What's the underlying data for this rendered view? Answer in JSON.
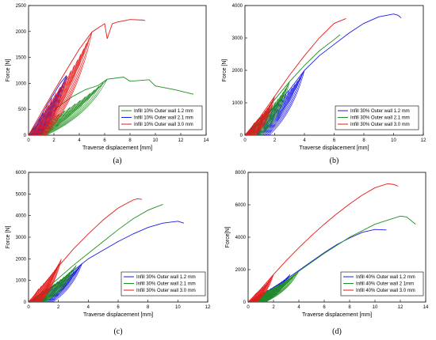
{
  "colors": {
    "blue": "#1a1ae6",
    "green": "#1f8f1f",
    "red": "#e61a1a"
  },
  "chart_data": [
    {
      "panel_label": "(a)",
      "type": "line",
      "xlabel": "Traverse displacement [mm]",
      "ylabel": "Force [N]",
      "xlim": [
        0,
        14
      ],
      "ylim": [
        0,
        2500
      ],
      "xticks": [
        0,
        2,
        4,
        6,
        8,
        10,
        12,
        14
      ],
      "yticks": [
        0,
        500,
        1000,
        1500,
        2000,
        2500
      ],
      "legend_position": "bottom-right",
      "series": [
        {
          "name": "Infill 10% Outer wall 1.2 mm",
          "color": "green",
          "points": [
            [
              0,
              0
            ],
            [
              0.5,
              150
            ],
            [
              1.5,
              380
            ],
            [
              2.5,
              580
            ],
            [
              3.5,
              750
            ],
            [
              4.5,
              880
            ],
            [
              5.5,
              960
            ],
            [
              6.2,
              1080
            ],
            [
              7.5,
              1120
            ],
            [
              8,
              1040
            ],
            [
              9.5,
              1070
            ],
            [
              10,
              950
            ],
            [
              11.5,
              880
            ],
            [
              13,
              790
            ]
          ],
          "cycles": {
            "count": 12,
            "end_x": 6.2,
            "end_y": 1080,
            "shift": 0.12
          }
        },
        {
          "name": "Infill 10% Outer wall 2.1 mm",
          "color": "blue",
          "points": [
            [
              0,
              0
            ],
            [
              0.5,
              180
            ],
            [
              1,
              380
            ],
            [
              1.5,
              600
            ],
            [
              2,
              800
            ],
            [
              2.5,
              1000
            ],
            [
              3,
              1150
            ]
          ],
          "cycles": {
            "count": 12,
            "end_x": 3,
            "end_y": 1150,
            "shift": 0.08
          }
        },
        {
          "name": "Infill 10% Outer wall 3.0 mm",
          "color": "red",
          "points": [
            [
              0,
              0
            ],
            [
              1,
              430
            ],
            [
              2,
              850
            ],
            [
              3,
              1260
            ],
            [
              4,
              1660
            ],
            [
              5,
              1990
            ],
            [
              6,
              2150
            ],
            [
              6.2,
              1860
            ],
            [
              6.6,
              2150
            ],
            [
              7,
              2180
            ],
            [
              8,
              2230
            ],
            [
              9,
              2220
            ],
            [
              9.2,
              2210
            ]
          ],
          "cycles": {
            "count": 14,
            "end_x": 5,
            "end_y": 1990,
            "shift": 0.1
          }
        }
      ]
    },
    {
      "panel_label": "(b)",
      "type": "line",
      "xlabel": "Traverse displacement [mm]",
      "ylabel": "Force [N]",
      "xlim": [
        0,
        12
      ],
      "ylim": [
        0,
        4000
      ],
      "xticks": [
        0,
        2,
        4,
        6,
        8,
        10,
        12
      ],
      "yticks": [
        0,
        1000,
        2000,
        3000,
        4000
      ],
      "legend_position": "bottom-right",
      "series": [
        {
          "name": "Infill 30% Outer wall 1.2 mm",
          "color": "blue",
          "points": [
            [
              0,
              0
            ],
            [
              1,
              400
            ],
            [
              2,
              900
            ],
            [
              3,
              1400
            ],
            [
              4,
              2000
            ],
            [
              5,
              2450
            ],
            [
              6,
              2800
            ],
            [
              7,
              3150
            ],
            [
              8,
              3450
            ],
            [
              9,
              3650
            ],
            [
              10,
              3740
            ],
            [
              10.3,
              3700
            ],
            [
              10.5,
              3620
            ]
          ],
          "cycles": {
            "count": 14,
            "end_x": 4,
            "end_y": 2000,
            "shift": 0.12
          }
        },
        {
          "name": "Infill 30% Outer wall 2.1 mm",
          "color": "green",
          "points": [
            [
              0,
              0
            ],
            [
              1,
              500
            ],
            [
              2,
              1100
            ],
            [
              3,
              1650
            ],
            [
              4,
              2150
            ],
            [
              5,
              2600
            ],
            [
              6,
              2950
            ],
            [
              6.4,
              3100
            ]
          ],
          "cycles": {
            "count": 12,
            "end_x": 3,
            "end_y": 1650,
            "shift": 0.1
          }
        },
        {
          "name": "Infill 30% Outer wall 3.0 mm",
          "color": "red",
          "points": [
            [
              0,
              0
            ],
            [
              1,
              550
            ],
            [
              2,
              1200
            ],
            [
              3,
              1850
            ],
            [
              4,
              2450
            ],
            [
              5,
              3000
            ],
            [
              6,
              3450
            ],
            [
              6.8,
              3600
            ]
          ],
          "cycles": {
            "count": 10,
            "end_x": 2,
            "end_y": 1200,
            "shift": 0.08
          }
        }
      ]
    },
    {
      "panel_label": "(c)",
      "type": "line",
      "xlabel": "Traverse displacement [mm]",
      "ylabel": "Force [N]",
      "xlim": [
        0,
        12
      ],
      "ylim": [
        0,
        6000
      ],
      "xticks": [
        0,
        2,
        4,
        6,
        8,
        10,
        12
      ],
      "yticks": [
        0,
        1000,
        2000,
        3000,
        4000,
        5000,
        6000
      ],
      "legend_position": "bottom-right",
      "series": [
        {
          "name": "Infill 30% Outer wall 1.2 mm",
          "color": "blue",
          "points": [
            [
              0,
              0
            ],
            [
              1,
              400
            ],
            [
              2,
              900
            ],
            [
              3,
              1450
            ],
            [
              4,
              2000
            ],
            [
              5,
              2400
            ],
            [
              6,
              2800
            ],
            [
              7,
              3150
            ],
            [
              8,
              3450
            ],
            [
              9,
              3650
            ],
            [
              10,
              3740
            ],
            [
              10.4,
              3650
            ]
          ],
          "cycles": {
            "count": 14,
            "end_x": 3.6,
            "end_y": 1800,
            "shift": 0.12
          }
        },
        {
          "name": "Infill 30% Outer wall 2.1 mm",
          "color": "green",
          "points": [
            [
              0,
              0
            ],
            [
              1,
              500
            ],
            [
              2,
              1100
            ],
            [
              3,
              1700
            ],
            [
              4,
              2250
            ],
            [
              5,
              2800
            ],
            [
              6,
              3350
            ],
            [
              7,
              3850
            ],
            [
              8,
              4250
            ],
            [
              9,
              4520
            ]
          ],
          "cycles": {
            "count": 12,
            "end_x": 3.2,
            "end_y": 1700,
            "shift": 0.1
          }
        },
        {
          "name": "Infill 30% Outer wall 3.0 mm",
          "color": "red",
          "points": [
            [
              0,
              0
            ],
            [
              1,
              800
            ],
            [
              2,
              1650
            ],
            [
              3,
              2450
            ],
            [
              4,
              3150
            ],
            [
              5,
              3800
            ],
            [
              6,
              4350
            ],
            [
              7,
              4720
            ],
            [
              7.3,
              4780
            ],
            [
              7.6,
              4750
            ]
          ],
          "cycles": {
            "count": 12,
            "end_x": 2.2,
            "end_y": 2000,
            "shift": 0.07
          }
        }
      ]
    },
    {
      "panel_label": "(d)",
      "type": "line",
      "xlabel": "Traverse displacement [mm]",
      "ylabel": "Force[N]",
      "xlim": [
        0,
        14
      ],
      "ylim": [
        0,
        8000
      ],
      "xticks": [
        0,
        2,
        4,
        6,
        8,
        10,
        12,
        14
      ],
      "yticks": [
        0,
        2000,
        4000,
        6000,
        8000
      ],
      "legend_position": "bottom-right",
      "series": [
        {
          "name": "Infill 40% Outer wall 1.2 mm",
          "color": "blue",
          "points": [
            [
              0,
              0
            ],
            [
              1,
              400
            ],
            [
              2,
              900
            ],
            [
              3,
              1400
            ],
            [
              4,
              1950
            ],
            [
              5,
              2500
            ],
            [
              6,
              3050
            ],
            [
              7,
              3550
            ],
            [
              8,
              3950
            ],
            [
              9,
              4300
            ],
            [
              10,
              4480
            ],
            [
              10.9,
              4450
            ]
          ],
          "cycles": {
            "count": 12,
            "end_x": 3.3,
            "end_y": 1700,
            "shift": 0.12
          }
        },
        {
          "name": "Infill 40% Outer wall 2 1mm",
          "color": "green",
          "points": [
            [
              0,
              0
            ],
            [
              1,
              400
            ],
            [
              2,
              800
            ],
            [
              3,
              1300
            ],
            [
              4,
              1900
            ],
            [
              6,
              3000
            ],
            [
              8,
              4000
            ],
            [
              10,
              4800
            ],
            [
              12,
              5300
            ],
            [
              12.5,
              5250
            ],
            [
              13.2,
              4800
            ]
          ],
          "cycles": {
            "count": 14,
            "end_x": 4,
            "end_y": 1900,
            "shift": 0.1
          }
        },
        {
          "name": "Infill 40% Outer wall 3.0 mm",
          "color": "red",
          "points": [
            [
              0,
              0
            ],
            [
              1,
              800
            ],
            [
              2,
              1700
            ],
            [
              3,
              2550
            ],
            [
              4,
              3350
            ],
            [
              5,
              4100
            ],
            [
              6,
              4800
            ],
            [
              7,
              5450
            ],
            [
              8,
              6050
            ],
            [
              9,
              6600
            ],
            [
              10,
              7050
            ],
            [
              11,
              7300
            ],
            [
              11.5,
              7250
            ],
            [
              11.8,
              7150
            ]
          ],
          "cycles": {
            "count": 10,
            "end_x": 2,
            "end_y": 1700,
            "shift": 0.07
          }
        }
      ]
    }
  ]
}
